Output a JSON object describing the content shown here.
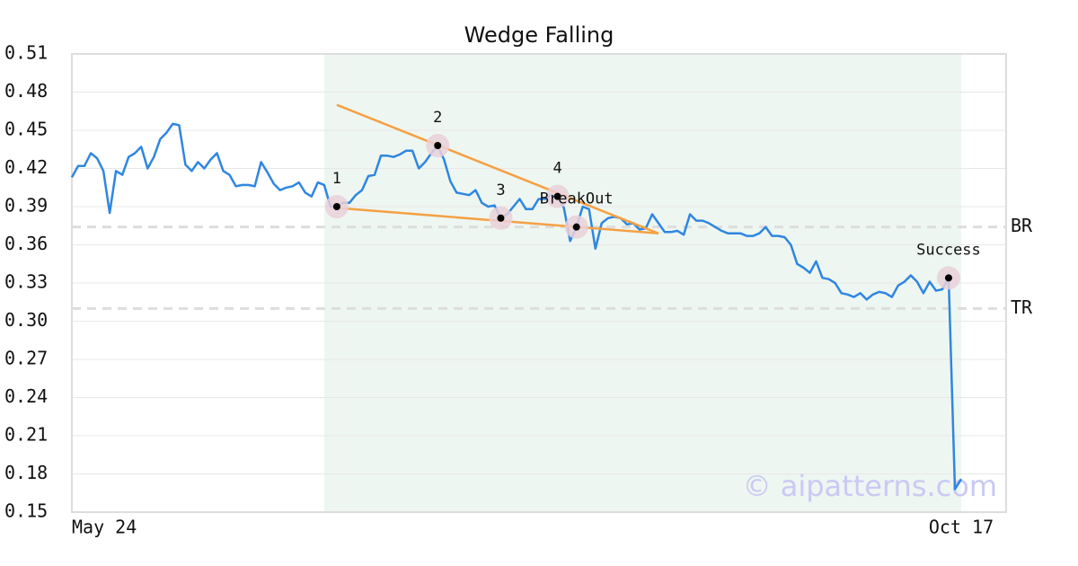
{
  "chart_data": {
    "type": "line",
    "title": "Wedge Falling",
    "watermark": "© aipatterns.com",
    "categories": [
      "May 24",
      null,
      null,
      null,
      null,
      null,
      null,
      null,
      null,
      null,
      null,
      null,
      null,
      null,
      null,
      null,
      null,
      null,
      null,
      null,
      null,
      null,
      null,
      null,
      null,
      null,
      null,
      null,
      null,
      null,
      null,
      null,
      null,
      null,
      null,
      null,
      null,
      null,
      null,
      null,
      null,
      null,
      null,
      null,
      null,
      null,
      null,
      null,
      null,
      null,
      null,
      null,
      null,
      null,
      null,
      null,
      null,
      null,
      null,
      null,
      null,
      null,
      null,
      null,
      null,
      null,
      null,
      null,
      null,
      null,
      null,
      null,
      null,
      null,
      null,
      null,
      null,
      null,
      null,
      null,
      null,
      null,
      null,
      null,
      null,
      null,
      null,
      null,
      null,
      null,
      null,
      null,
      null,
      null,
      null,
      null,
      null,
      null,
      null,
      null,
      null,
      null,
      null,
      null,
      null,
      null,
      null,
      null,
      null,
      null,
      null,
      null,
      null,
      null,
      null,
      null,
      null,
      null,
      null,
      null,
      null,
      null,
      null,
      null,
      null,
      null,
      null,
      null,
      null,
      null,
      null,
      null,
      null,
      null,
      null,
      null,
      null,
      null,
      null,
      null,
      null,
      "Oct 17"
    ],
    "series": [
      {
        "color": "#2f86e0",
        "values": [
          0.413,
          0.422,
          0.422,
          0.432,
          0.428,
          0.418,
          0.385,
          0.418,
          0.415,
          0.429,
          0.432,
          0.437,
          0.42,
          0.429,
          0.443,
          0.448,
          0.455,
          0.454,
          0.423,
          0.418,
          0.425,
          0.42,
          0.427,
          0.432,
          0.418,
          0.415,
          0.406,
          0.407,
          0.407,
          0.406,
          0.425,
          0.417,
          0.408,
          0.403,
          0.405,
          0.406,
          0.409,
          0.401,
          0.398,
          0.409,
          0.407,
          0.39,
          0.39,
          0.393,
          0.393,
          0.399,
          0.403,
          0.414,
          0.415,
          0.43,
          0.43,
          0.429,
          0.431,
          0.434,
          0.434,
          0.42,
          0.425,
          0.432,
          0.438,
          0.427,
          0.41,
          0.401,
          0.4,
          0.399,
          0.403,
          0.393,
          0.39,
          0.391,
          0.381,
          0.384,
          0.39,
          0.396,
          0.388,
          0.388,
          0.396,
          0.396,
          0.399,
          0.398,
          0.389,
          0.363,
          0.374,
          0.39,
          0.388,
          0.357,
          0.377,
          0.381,
          0.382,
          0.381,
          0.376,
          0.377,
          0.372,
          0.373,
          0.384,
          0.377,
          0.37,
          0.37,
          0.371,
          0.368,
          0.384,
          0.379,
          0.379,
          0.377,
          0.374,
          0.371,
          0.369,
          0.369,
          0.369,
          0.367,
          0.367,
          0.369,
          0.374,
          0.367,
          0.367,
          0.366,
          0.36,
          0.345,
          0.342,
          0.338,
          0.347,
          0.334,
          0.333,
          0.33,
          0.322,
          0.321,
          0.319,
          0.322,
          0.317,
          0.321,
          0.323,
          0.322,
          0.319,
          0.328,
          0.331,
          0.336,
          0.331,
          0.322,
          0.331,
          0.324,
          0.325,
          0.334,
          0.168,
          0.176
        ]
      }
    ],
    "ylim": [
      0.15,
      0.51
    ],
    "yticks": [
      0.51,
      0.48,
      0.45,
      0.42,
      0.39,
      0.36,
      0.33,
      {
        "value": 0.3,
        "label": "0.30"
      },
      0.27,
      0.24,
      0.21,
      0.18,
      0.15
    ],
    "grid": true,
    "shade": {
      "from": 40,
      "to": 141,
      "color": "#eef6f1"
    },
    "levels": [
      {
        "label": "BR",
        "value": 0.374
      },
      {
        "label": "TR",
        "value": 0.31
      }
    ],
    "trend_color": "#f5a043",
    "trend_lines": [
      {
        "from": 42,
        "to": 93,
        "values": [
          0.47,
          0.369
        ]
      },
      {
        "from": 42,
        "to": 93,
        "values": [
          0.389,
          0.369
        ]
      }
    ],
    "markers": [
      {
        "label": "1",
        "index": 42
      },
      {
        "label": "2",
        "index": 58
      },
      {
        "label": "3",
        "index": 68
      },
      {
        "label": "4",
        "index": 77
      },
      {
        "label": "BreakOut",
        "index": 80
      },
      {
        "label": "Success",
        "index": 139
      }
    ]
  }
}
